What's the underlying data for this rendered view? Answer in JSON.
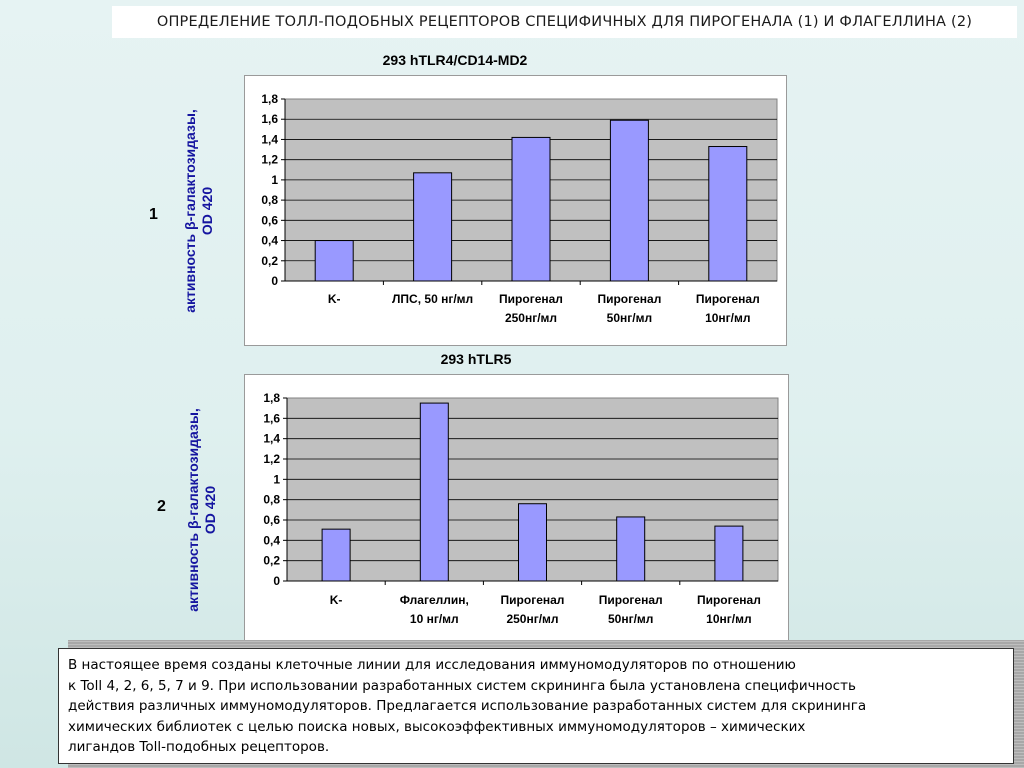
{
  "header": {
    "title": "ОПРЕДЕЛЕНИЕ ТОЛЛ-ПОДОБНЫХ РЕЦЕПТОРОВ СПЕЦИФИЧНЫХ ДЛЯ ПИРОГЕНАЛА (1) И ФЛАГЕЛЛИНА (2)"
  },
  "panels": [
    {
      "number": "1",
      "ylabel_line1": "активность β-галактозидазы,",
      "ylabel_line2": "OD 420"
    },
    {
      "number": "2",
      "ylabel_line1": "активность β-галактозидазы,",
      "ylabel_line2": "OD 420"
    }
  ],
  "chart_data": [
    {
      "type": "bar",
      "title": "293 hTLR4/CD14-MD2",
      "categories": [
        [
          "K-"
        ],
        [
          "ЛПС, 50 нг/мл"
        ],
        [
          "Пирогенал",
          "250нг/мл"
        ],
        [
          "Пирогенал",
          "50нг/мл"
        ],
        [
          "Пирогенал",
          "10нг/мл"
        ]
      ],
      "values": [
        0.4,
        1.07,
        1.42,
        1.59,
        1.33
      ],
      "ylim": [
        0,
        1.8
      ],
      "yticks": [
        "0",
        "0,2",
        "0,4",
        "0,6",
        "0,8",
        "1",
        "1,2",
        "1,4",
        "1,6",
        "1,8"
      ],
      "grid": true,
      "bar_color": "#9999ff",
      "plot_bg": "#c0c0c0"
    },
    {
      "type": "bar",
      "title": "293 hTLR5",
      "categories": [
        [
          "K-"
        ],
        [
          "Флагеллин,",
          "10 нг/мл"
        ],
        [
          "Пирогенал",
          "250нг/мл"
        ],
        [
          "Пирогенал",
          "50нг/мл"
        ],
        [
          "Пирогенал",
          "10нг/мл"
        ]
      ],
      "values": [
        0.51,
        1.75,
        0.76,
        0.63,
        0.54
      ],
      "ylim": [
        0,
        1.8
      ],
      "yticks": [
        "0",
        "0,2",
        "0,4",
        "0,6",
        "0,8",
        "1",
        "1,2",
        "1,4",
        "1,6",
        "1,8"
      ],
      "grid": true,
      "bar_color": "#9999ff",
      "plot_bg": "#c0c0c0"
    }
  ],
  "note": {
    "lines": [
      "В настоящее время созданы клеточные линии для исследования иммуномодуляторов по отношению",
      "к Toll 4, 2, 6, 5, 7 и 9. При использовании разработанных систем скрининга была установлена специфичность",
      "действия различных иммуномодуляторов. Предлагается использование разработанных систем для скрининга",
      "химических библиотек с целью поиска новых, высокоэффективных иммуномодуляторов – химических",
      "лигандов Toll-подобных рецепторов."
    ]
  }
}
